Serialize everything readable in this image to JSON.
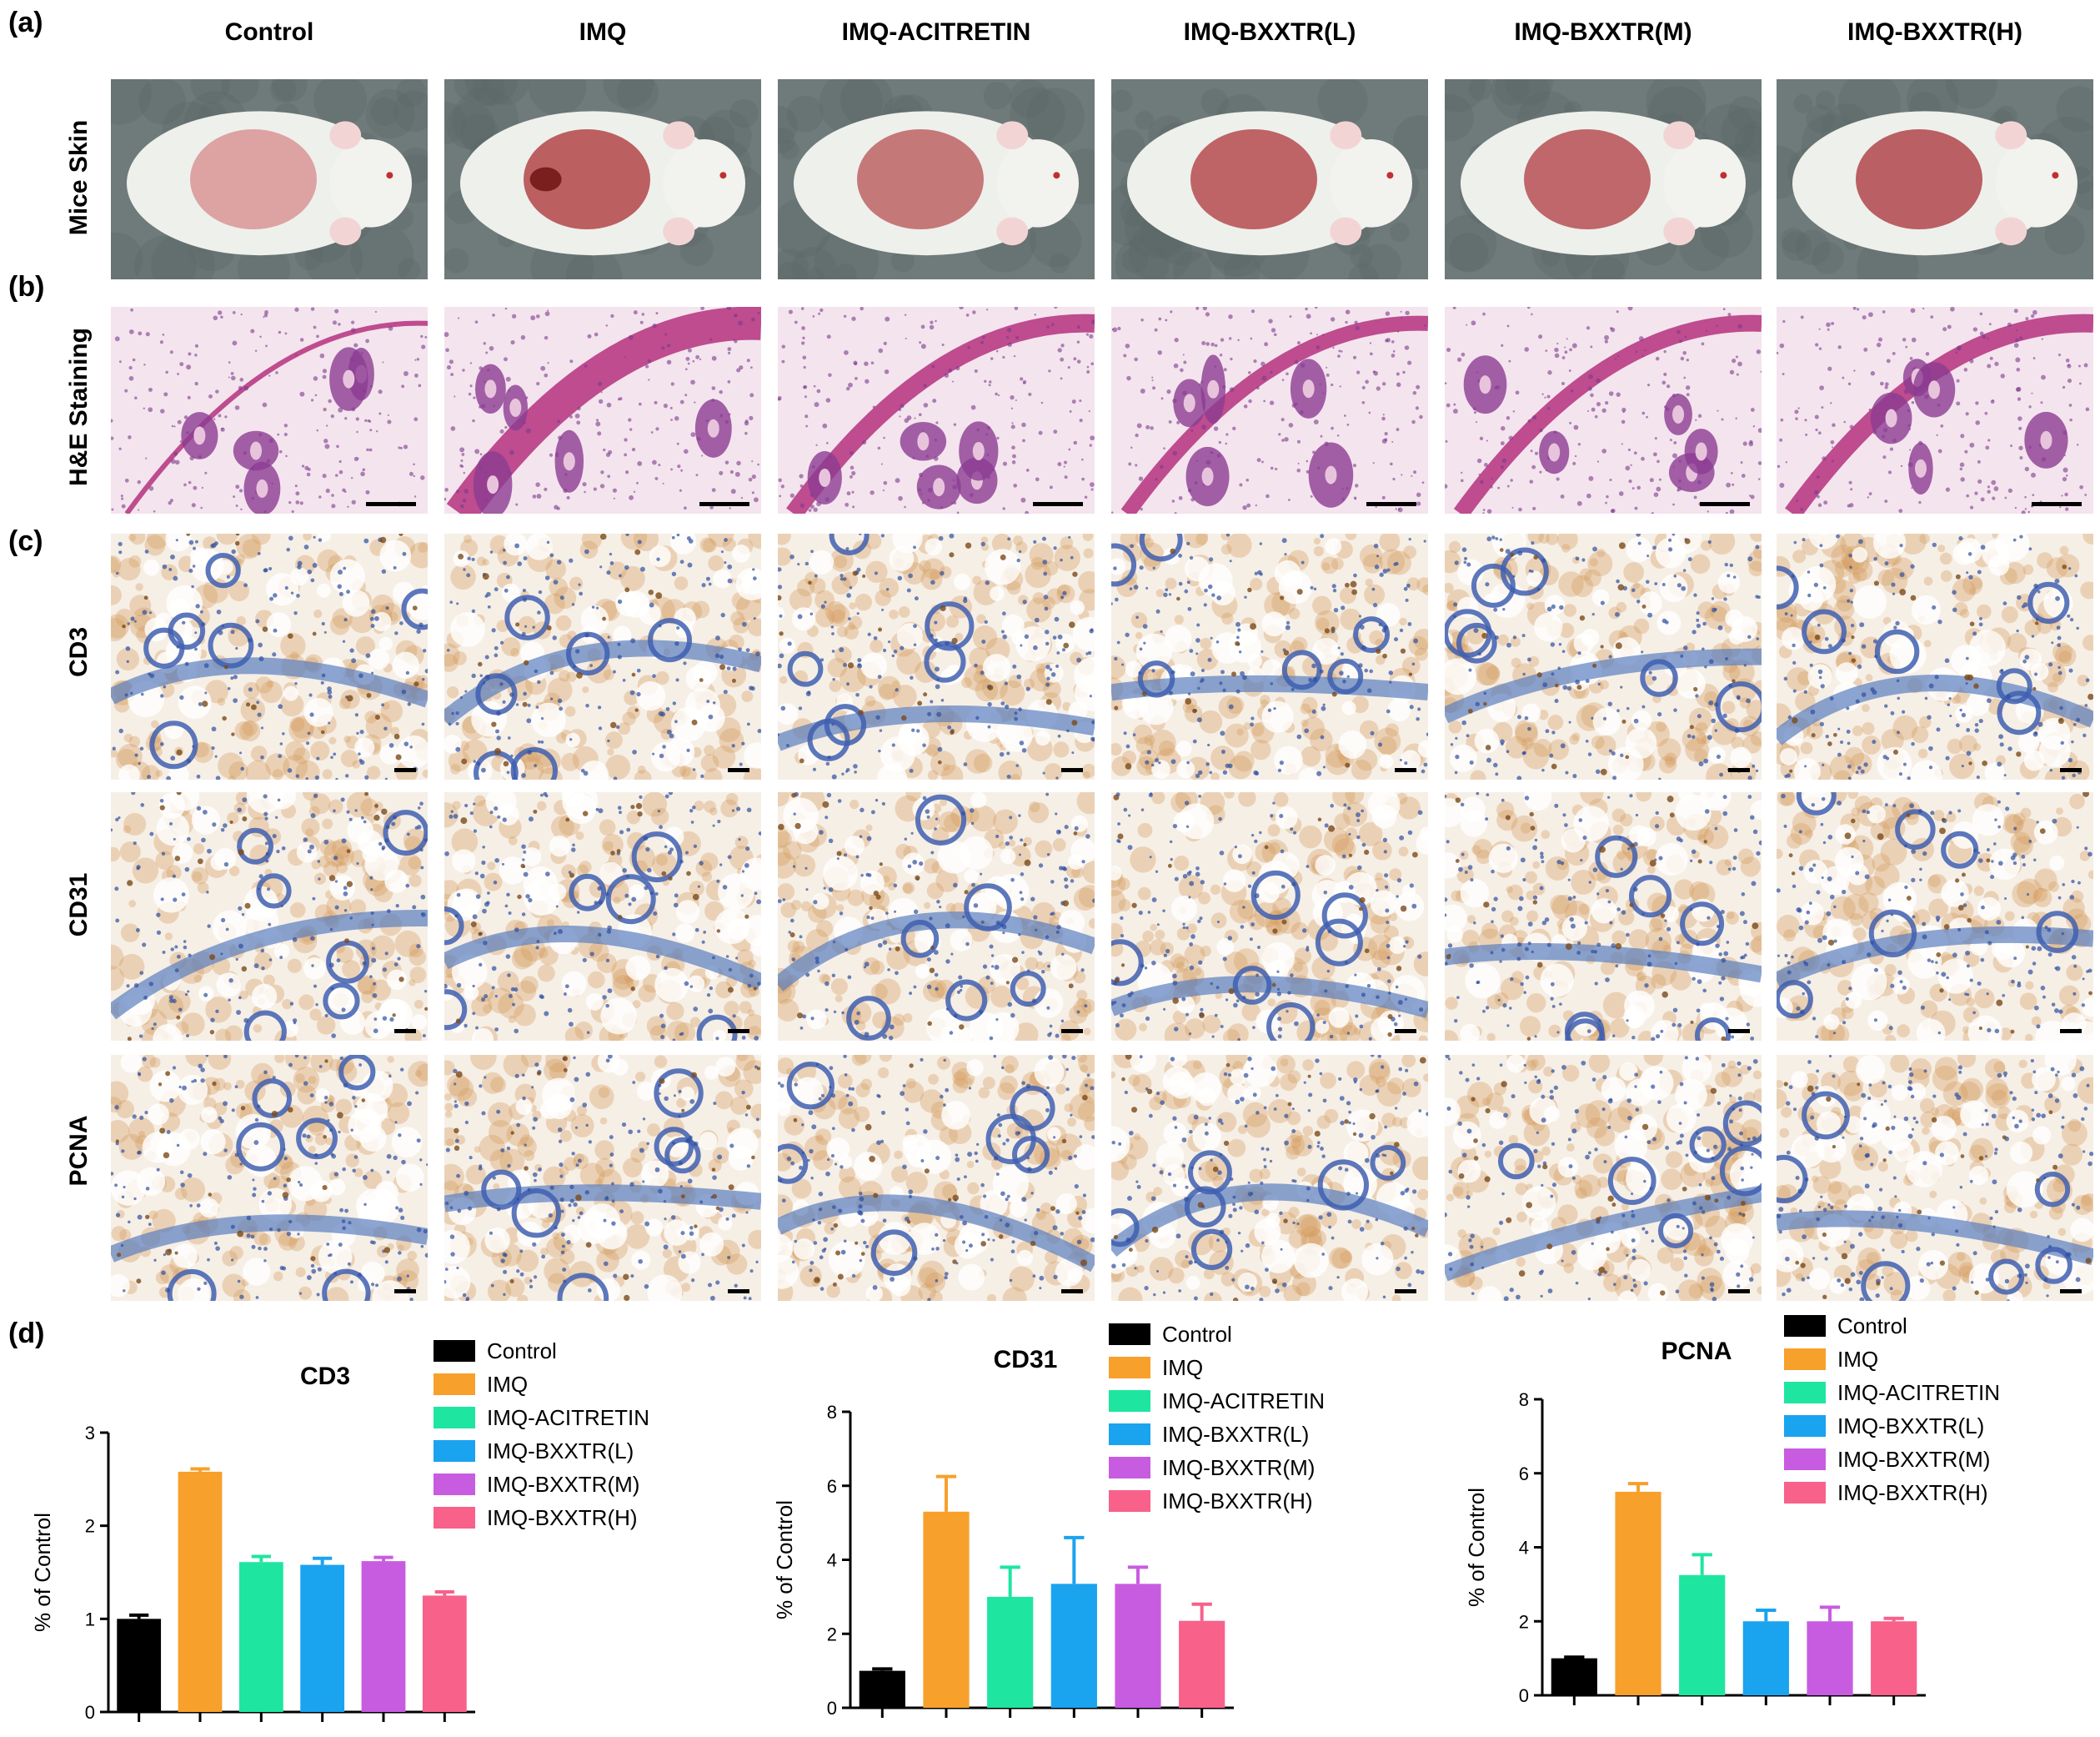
{
  "panels": {
    "a": "(a)",
    "b": "(b)",
    "c": "(c)",
    "d": "(d)"
  },
  "groups": [
    "Control",
    "IMQ",
    "IMQ-ACITRETIN",
    "IMQ-BXXTR(L)",
    "IMQ-BXXTR(M)",
    "IMQ-BXXTR(H)"
  ],
  "row_labels": {
    "mice_skin": "Mice Skin",
    "he": "H&E Staining",
    "cd3": "CD3",
    "cd31": "CD31",
    "pcna": "PCNA"
  },
  "colors": {
    "Control": "#000000",
    "IMQ": "#f7a02c",
    "IMQ-ACITRETIN": "#1ee6a0",
    "IMQ-BXXTR(L)": "#1aa3ef",
    "IMQ-BXXTR(M)": "#c85ce0",
    "IMQ-BXXTR(H)": "#f7618a"
  },
  "photo_types": {
    "mice_skin": "mouse-photo",
    "he": "he-stain-micrograph",
    "ihc": "ihc-stain-micrograph"
  },
  "chart_data": [
    {
      "type": "bar",
      "title": "CD3",
      "ylabel": "% of Control",
      "categories": [
        "Control",
        "IMQ",
        "IMQ-ACITRETIN",
        "IMQ-BXXTR(L)",
        "IMQ-BXXTR(M)",
        "IMQ-BXXTR(H)"
      ],
      "values": [
        1.0,
        2.58,
        1.61,
        1.58,
        1.62,
        1.25
      ],
      "errors": [
        0.04,
        0.03,
        0.06,
        0.07,
        0.04,
        0.04
      ],
      "ylim": [
        0,
        3
      ],
      "yticks": [
        "0",
        "1",
        "2",
        "3"
      ],
      "legend": "top-right"
    },
    {
      "type": "bar",
      "title": "CD31",
      "ylabel": "% of Control",
      "categories": [
        "Control",
        "IMQ",
        "IMQ-ACITRETIN",
        "IMQ-BXXTR(L)",
        "IMQ-BXXTR(M)",
        "IMQ-BXXTR(H)"
      ],
      "values": [
        1.0,
        5.3,
        3.0,
        3.35,
        3.35,
        2.35
      ],
      "errors": [
        0.05,
        0.95,
        0.8,
        1.25,
        0.45,
        0.45
      ],
      "ylim": [
        0,
        8
      ],
      "yticks": [
        "0",
        "2",
        "4",
        "6",
        "8"
      ],
      "legend": "top-right"
    },
    {
      "type": "bar",
      "title": "PCNA",
      "ylabel": "% of Control",
      "categories": [
        "Control",
        "IMQ",
        "IMQ-ACITRETIN",
        "IMQ-BXXTR(L)",
        "IMQ-BXXTR(M)",
        "IMQ-BXXTR(H)"
      ],
      "values": [
        1.0,
        5.5,
        3.25,
        2.0,
        2.0,
        2.0
      ],
      "errors": [
        0.03,
        0.22,
        0.55,
        0.3,
        0.38,
        0.08
      ],
      "ylim": [
        0,
        8
      ],
      "yticks": [
        "0",
        "2",
        "4",
        "6",
        "8"
      ],
      "legend": "top-right"
    }
  ]
}
